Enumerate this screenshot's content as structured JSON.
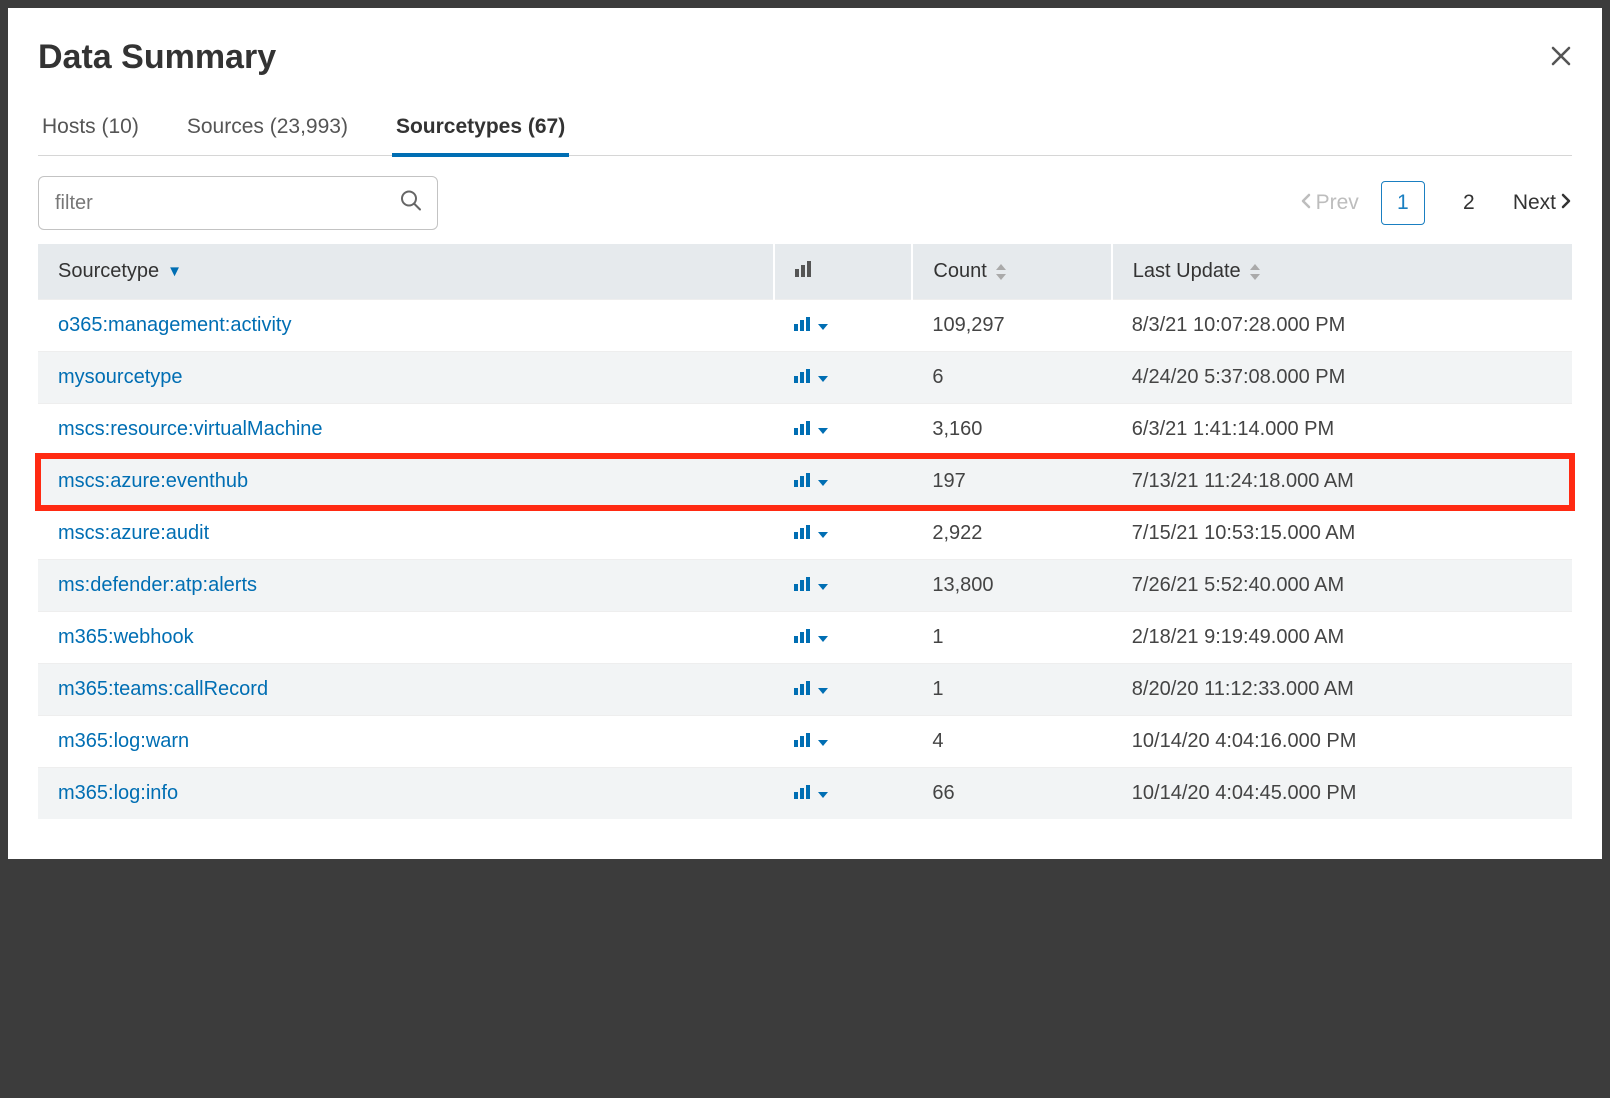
{
  "dialog": {
    "title": "Data Summary"
  },
  "tabs": [
    {
      "label": "Hosts (10)",
      "active": false
    },
    {
      "label": "Sources (23,993)",
      "active": false
    },
    {
      "label": "Sourcetypes (67)",
      "active": true
    }
  ],
  "filter": {
    "placeholder": "filter",
    "value": ""
  },
  "pagination": {
    "prev_label": "Prev",
    "next_label": "Next",
    "pages": [
      {
        "n": "1",
        "active": true
      },
      {
        "n": "2",
        "active": false
      }
    ]
  },
  "table": {
    "header": {
      "sourcetype": "Sourcetype",
      "count": "Count",
      "last_update": "Last Update"
    },
    "rows": [
      {
        "name": "o365:management:activity",
        "count": "109,297",
        "last_update": "8/3/21 10:07:28.000 PM",
        "highlight": false
      },
      {
        "name": "mysourcetype",
        "count": "6",
        "last_update": "4/24/20 5:37:08.000 PM",
        "highlight": false
      },
      {
        "name": "mscs:resource:virtualMachine",
        "count": "3,160",
        "last_update": "6/3/21 1:41:14.000 PM",
        "highlight": false
      },
      {
        "name": "mscs:azure:eventhub",
        "count": "197",
        "last_update": "7/13/21 11:24:18.000 AM",
        "highlight": true
      },
      {
        "name": "mscs:azure:audit",
        "count": "2,922",
        "last_update": "7/15/21 10:53:15.000 AM",
        "highlight": false
      },
      {
        "name": "ms:defender:atp:alerts",
        "count": "13,800",
        "last_update": "7/26/21 5:52:40.000 AM",
        "highlight": false
      },
      {
        "name": "m365:webhook",
        "count": "1",
        "last_update": "2/18/21 9:19:49.000 AM",
        "highlight": false
      },
      {
        "name": "m365:teams:callRecord",
        "count": "1",
        "last_update": "8/20/20 11:12:33.000 AM",
        "highlight": false
      },
      {
        "name": "m365:log:warn",
        "count": "4",
        "last_update": "10/14/20 4:04:16.000 PM",
        "highlight": false
      },
      {
        "name": "m365:log:info",
        "count": "66",
        "last_update": "10/14/20 4:04:45.000 PM",
        "highlight": false
      }
    ]
  },
  "colors": {
    "link": "#006eb3",
    "header_bg": "#e6eaed",
    "row_alt": "#f2f4f5",
    "highlight_border": "#ff2a12"
  }
}
